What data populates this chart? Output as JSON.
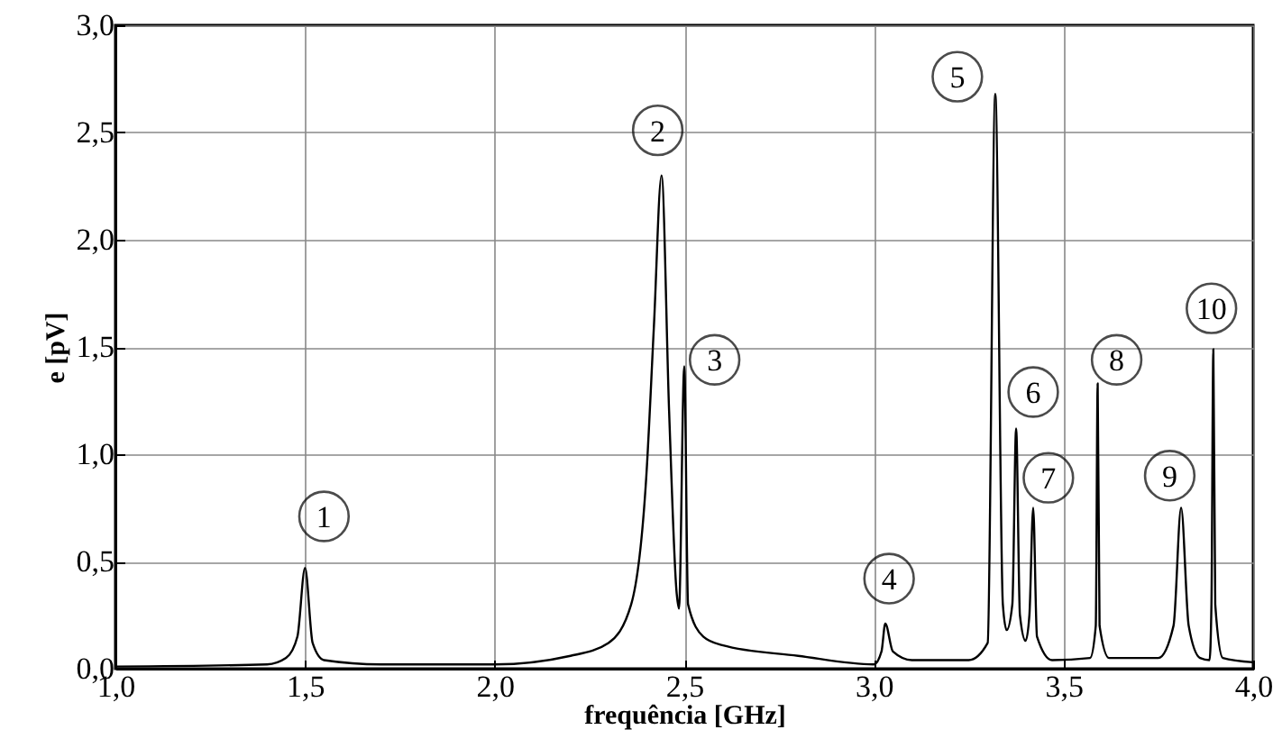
{
  "chart_data": {
    "type": "line",
    "xlabel": "frequência [GHz]",
    "ylabel": "e [pV]",
    "x": [
      1.0,
      1.4,
      1.45,
      1.48,
      1.5,
      1.52,
      1.55,
      1.7,
      2.0,
      2.2,
      2.3,
      2.36,
      2.4,
      2.42,
      2.44,
      2.46,
      2.48,
      2.486,
      2.5,
      2.51,
      2.55,
      2.6,
      2.8,
      3.0,
      3.02,
      3.03,
      3.05,
      3.1,
      3.25,
      3.3,
      3.32,
      3.34,
      3.35,
      3.365,
      3.375,
      3.385,
      3.4,
      3.41,
      3.42,
      3.43,
      3.47,
      3.57,
      3.585,
      3.59,
      3.595,
      3.62,
      3.75,
      3.79,
      3.81,
      3.83,
      3.86,
      3.885,
      3.89,
      3.895,
      3.9,
      3.92,
      4.0
    ],
    "series": [
      {
        "color": "#000000",
        "values": [
          0.01,
          0.02,
          0.05,
          0.15,
          0.47,
          0.12,
          0.04,
          0.02,
          0.02,
          0.06,
          0.12,
          0.3,
          0.9,
          1.6,
          2.3,
          1.2,
          0.35,
          0.28,
          1.41,
          0.3,
          0.15,
          0.11,
          0.06,
          0.02,
          0.08,
          0.21,
          0.08,
          0.04,
          0.04,
          0.12,
          2.68,
          0.3,
          0.18,
          0.3,
          1.12,
          0.25,
          0.13,
          0.25,
          0.75,
          0.15,
          0.04,
          0.05,
          0.2,
          1.33,
          0.2,
          0.05,
          0.05,
          0.2,
          0.75,
          0.2,
          0.05,
          0.04,
          0.3,
          1.49,
          0.3,
          0.05,
          0.03
        ]
      }
    ],
    "xlim": [
      1.0,
      4.0
    ],
    "ylim": [
      0.0,
      3.0
    ],
    "xticks": [
      {
        "value": 1.0,
        "label": "1,0"
      },
      {
        "value": 1.5,
        "label": "1,5"
      },
      {
        "value": 2.0,
        "label": "2,0"
      },
      {
        "value": 2.5,
        "label": "2,5"
      },
      {
        "value": 3.0,
        "label": "3,0"
      },
      {
        "value": 3.5,
        "label": "3,5"
      },
      {
        "value": 4.0,
        "label": "4,0"
      }
    ],
    "yticks": [
      {
        "value": 0.0,
        "label": "0,0"
      },
      {
        "value": 0.5,
        "label": "0,5"
      },
      {
        "value": 1.0,
        "label": "1,0"
      },
      {
        "value": 1.5,
        "label": "1,5"
      },
      {
        "value": 2.0,
        "label": "2,0"
      },
      {
        "value": 2.5,
        "label": "2,5"
      },
      {
        "value": 3.0,
        "label": "3,0"
      }
    ],
    "grid": true,
    "marker": "none",
    "line_style": "solid",
    "annotations": [
      {
        "text": "1",
        "x": 1.55,
        "y": 0.71
      },
      {
        "text": "2",
        "x": 2.43,
        "y": 2.51
      },
      {
        "text": "3",
        "x": 2.58,
        "y": 1.44
      },
      {
        "text": "4",
        "x": 3.04,
        "y": 0.42
      },
      {
        "text": "5",
        "x": 3.22,
        "y": 2.76
      },
      {
        "text": "6",
        "x": 3.42,
        "y": 1.29
      },
      {
        "text": "7",
        "x": 3.46,
        "y": 0.89
      },
      {
        "text": "8",
        "x": 3.64,
        "y": 1.44
      },
      {
        "text": "9",
        "x": 3.78,
        "y": 0.9
      },
      {
        "text": "10",
        "x": 3.89,
        "y": 1.68
      }
    ]
  }
}
